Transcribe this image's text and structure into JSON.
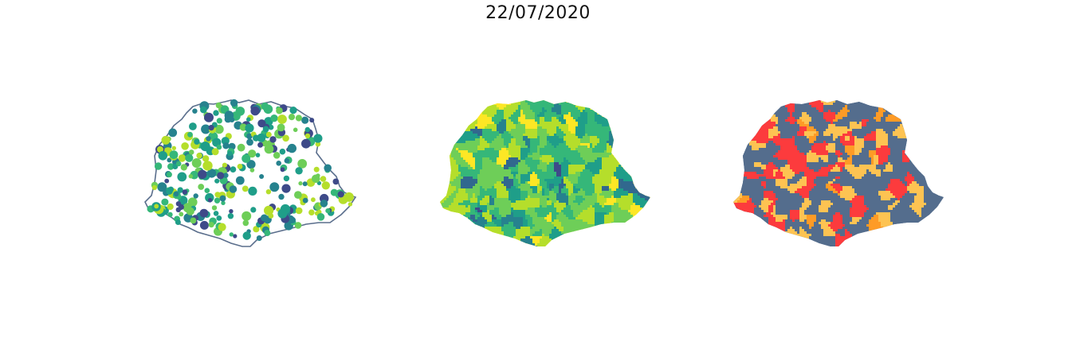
{
  "figure": {
    "title": "22/07/2020"
  },
  "maps": [
    {
      "id": "points",
      "kind": "proportional-symbol",
      "outline_color": "#5a6e8c",
      "fill": "none",
      "point_palette": [
        "#35b779",
        "#6ece58",
        "#1f9e89",
        "#b5de2b",
        "#26828e",
        "#3e4a89"
      ]
    },
    {
      "id": "choropleth-continuous",
      "kind": "choropleth",
      "palette": [
        "#fde725",
        "#b5de2b",
        "#6ece58",
        "#35b779",
        "#1f9e89",
        "#26828e",
        "#31688e",
        "#3e4a89"
      ]
    },
    {
      "id": "choropleth-categorical",
      "kind": "choropleth",
      "palette": [
        "#546d8d",
        "#fc3b3d",
        "#fdc352",
        "#fe9b26"
      ]
    }
  ]
}
